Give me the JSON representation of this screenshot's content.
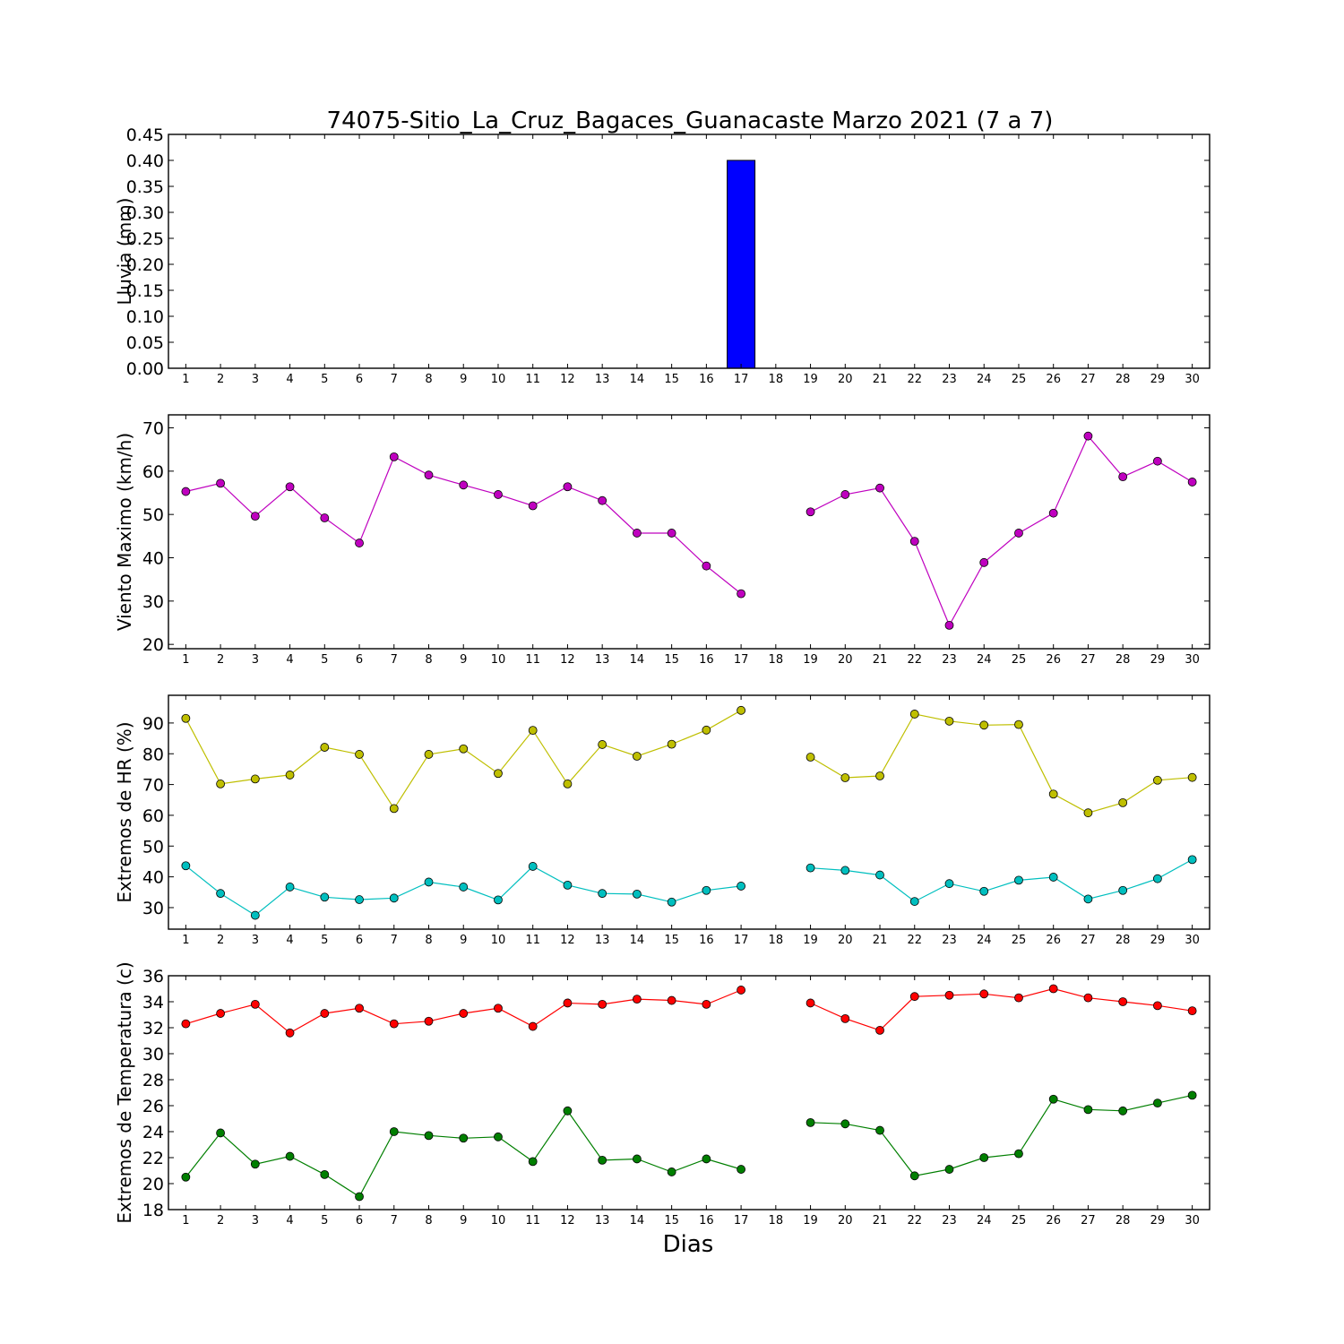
{
  "chart_data": [
    {
      "type": "bar",
      "title": "74075-Sitio_La_Cruz_Bagaces_Guanacaste Marzo 2021  (7 a 7)",
      "ylabel": "Lluvia (mm)",
      "xlabel": "",
      "categories": [
        "1",
        "2",
        "3",
        "4",
        "5",
        "6",
        "7",
        "8",
        "9",
        "10",
        "11",
        "12",
        "13",
        "14",
        "15",
        "16",
        "17",
        "18",
        "19",
        "20",
        "21",
        "22",
        "23",
        "24",
        "25",
        "26",
        "27",
        "28",
        "29",
        "30"
      ],
      "ylim": [
        0,
        0.45
      ],
      "yticks": [
        "0.00",
        "0.05",
        "0.10",
        "0.15",
        "0.20",
        "0.25",
        "0.30",
        "0.35",
        "0.40",
        "0.45"
      ],
      "series": [
        {
          "color": "#0000ff",
          "values": [
            0,
            0,
            0,
            0,
            0,
            0,
            0,
            0,
            0,
            0,
            0,
            0,
            0,
            0,
            0,
            0,
            0.4,
            null,
            0,
            0,
            0,
            0,
            0,
            0,
            0,
            0,
            0,
            0,
            0,
            0
          ]
        }
      ]
    },
    {
      "type": "line",
      "ylabel": "Viento Maximo (km/h)",
      "xlabel": "",
      "categories": [
        "1",
        "2",
        "3",
        "4",
        "5",
        "6",
        "7",
        "8",
        "9",
        "10",
        "11",
        "12",
        "13",
        "14",
        "15",
        "16",
        "17",
        "18",
        "19",
        "20",
        "21",
        "22",
        "23",
        "24",
        "25",
        "26",
        "27",
        "28",
        "29",
        "30"
      ],
      "ylim": [
        19,
        73
      ],
      "yticks": [
        "20",
        "30",
        "40",
        "50",
        "60",
        "70"
      ],
      "series": [
        {
          "color": "#bf00bf",
          "values": [
            55.3,
            57.2,
            49.6,
            56.4,
            49.2,
            43.4,
            63.3,
            59.1,
            56.8,
            54.6,
            52.0,
            56.4,
            53.2,
            45.7,
            45.7,
            38.1,
            31.7,
            null,
            50.6,
            54.6,
            56.1,
            43.8,
            24.4,
            38.9,
            45.7,
            50.3,
            68.1,
            58.7,
            62.3,
            57.5
          ]
        }
      ]
    },
    {
      "type": "line",
      "ylabel": "Extremos de HR (%)",
      "xlabel": "",
      "categories": [
        "1",
        "2",
        "3",
        "4",
        "5",
        "6",
        "7",
        "8",
        "9",
        "10",
        "11",
        "12",
        "13",
        "14",
        "15",
        "16",
        "17",
        "18",
        "19",
        "20",
        "21",
        "22",
        "23",
        "24",
        "25",
        "26",
        "27",
        "28",
        "29",
        "30"
      ],
      "ylim": [
        23,
        99
      ],
      "yticks": [
        "30",
        "40",
        "50",
        "60",
        "70",
        "80",
        "90"
      ],
      "series": [
        {
          "color": "#bfbf00",
          "values": [
            91.5,
            70.2,
            71.8,
            73.1,
            82.1,
            79.8,
            62.2,
            79.8,
            81.6,
            73.6,
            87.6,
            70.2,
            83.0,
            79.2,
            83.1,
            87.7,
            94.1,
            null,
            78.9,
            72.2,
            72.8,
            92.9,
            90.6,
            89.3,
            89.5,
            66.9,
            60.8,
            64.1,
            71.4,
            72.3
          ]
        },
        {
          "color": "#00bfbf",
          "values": [
            43.6,
            34.6,
            27.5,
            36.7,
            33.4,
            32.6,
            33.1,
            38.3,
            36.7,
            32.5,
            43.4,
            37.3,
            34.6,
            34.4,
            31.8,
            35.6,
            37.0,
            null,
            42.9,
            42.1,
            40.6,
            32.0,
            37.8,
            35.3,
            38.9,
            39.9,
            32.8,
            35.6,
            39.4,
            45.6
          ]
        }
      ]
    },
    {
      "type": "line",
      "ylabel": "Extremos de Temperatura (c)",
      "xlabel": "Dias",
      "categories": [
        "1",
        "2",
        "3",
        "4",
        "5",
        "6",
        "7",
        "8",
        "9",
        "10",
        "11",
        "12",
        "13",
        "14",
        "15",
        "16",
        "17",
        "18",
        "19",
        "20",
        "21",
        "22",
        "23",
        "24",
        "25",
        "26",
        "27",
        "28",
        "29",
        "30"
      ],
      "ylim": [
        18,
        36
      ],
      "yticks": [
        "18",
        "20",
        "22",
        "24",
        "26",
        "28",
        "30",
        "32",
        "34",
        "36"
      ],
      "series": [
        {
          "color": "#ff0000",
          "values": [
            32.3,
            33.1,
            33.8,
            31.6,
            33.1,
            33.5,
            32.3,
            32.5,
            33.1,
            33.5,
            32.1,
            33.9,
            33.8,
            34.2,
            34.1,
            33.8,
            34.9,
            null,
            33.9,
            32.7,
            31.8,
            34.4,
            34.5,
            34.6,
            34.3,
            35.0,
            34.3,
            34.0,
            33.7,
            33.3
          ]
        },
        {
          "color": "#007f00",
          "values": [
            20.5,
            23.9,
            21.5,
            22.1,
            20.7,
            19.0,
            24.0,
            23.7,
            23.5,
            23.6,
            21.7,
            25.6,
            21.8,
            21.9,
            20.9,
            21.9,
            21.1,
            null,
            24.7,
            24.6,
            24.1,
            20.6,
            21.1,
            22.0,
            22.3,
            26.5,
            25.7,
            25.6,
            26.2,
            26.8
          ]
        }
      ]
    }
  ]
}
